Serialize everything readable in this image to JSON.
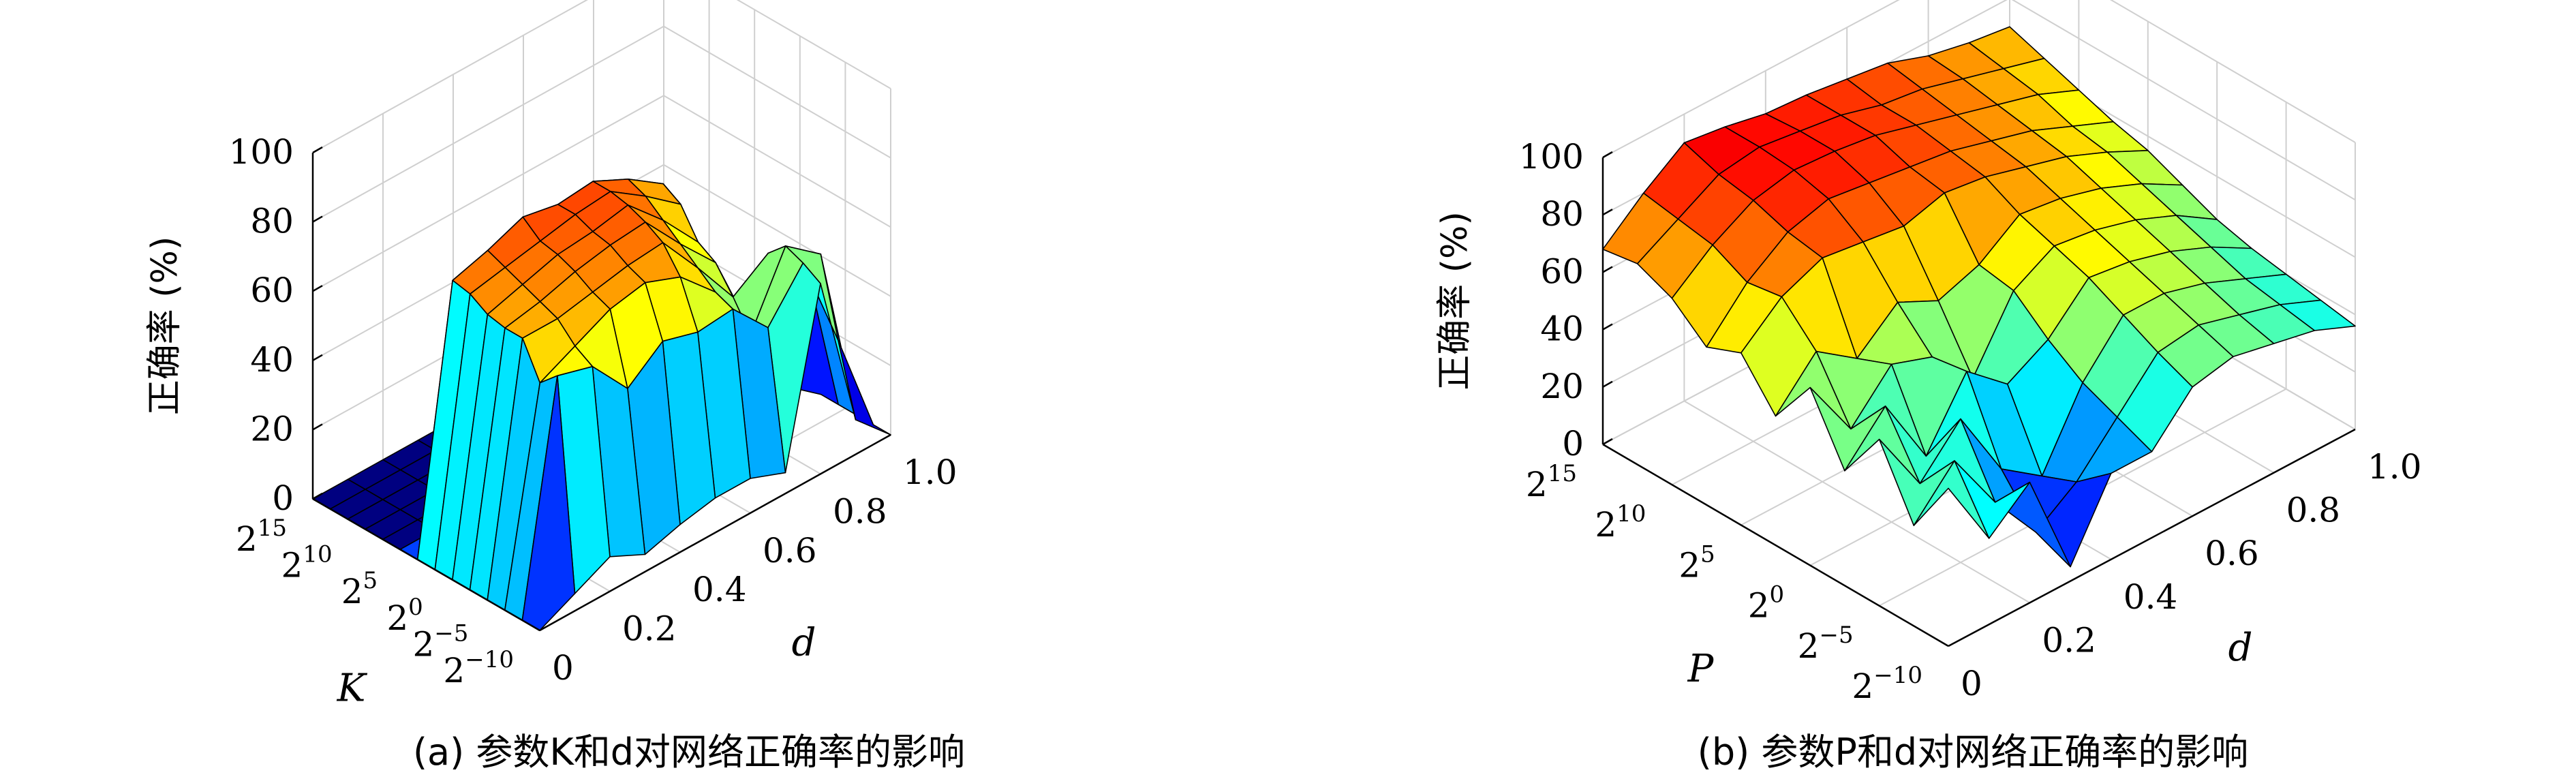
{
  "chart_data": [
    {
      "type": "surface",
      "caption": "(a) 参数K和d对网络正确率的影响",
      "xlabel": "K",
      "ylabel": "d",
      "zlabel": "正确率 (%)",
      "x_ticks": [
        "2^15",
        "2^10",
        "2^5",
        "2^0",
        "2^-5",
        "2^-10"
      ],
      "y_ticks": [
        "0",
        "0.2",
        "0.4",
        "0.6",
        "0.8",
        "1.0"
      ],
      "z_ticks": [
        "0",
        "20",
        "40",
        "60",
        "80",
        "100"
      ],
      "zlim": [
        0,
        100
      ],
      "ylim": [
        0,
        1
      ],
      "x_exponents": [
        15,
        10,
        5,
        0,
        -5,
        -10
      ],
      "d_values": [
        0,
        0.1,
        0.2,
        0.3,
        0.4,
        0.5,
        0.6,
        0.7,
        0.8,
        0.9,
        1.0
      ],
      "z": [
        [
          0,
          0,
          0,
          0,
          0,
          0,
          0,
          0,
          0,
          0,
          0
        ],
        [
          0,
          0,
          0,
          0,
          0,
          0,
          0,
          0,
          0,
          0,
          0
        ],
        [
          0,
          0,
          0,
          0,
          0,
          0,
          0,
          0,
          0,
          0,
          0
        ],
        [
          0,
          0,
          0,
          0,
          0,
          0,
          0,
          0,
          0,
          0,
          0
        ],
        [
          0,
          0,
          0,
          0,
          0,
          0,
          0,
          0,
          0,
          0,
          0
        ],
        [
          0,
          0,
          0,
          0,
          0,
          0,
          0,
          0,
          0,
          0,
          0
        ],
        [
          0,
          75,
          78,
          82,
          80,
          81,
          76,
          69,
          45,
          2,
          0
        ],
        [
          0,
          74,
          76,
          78,
          80,
          81,
          74,
          66,
          32,
          0,
          0
        ],
        [
          0,
          71,
          74,
          77,
          78,
          80,
          70,
          58,
          5,
          0,
          0
        ],
        [
          0,
          70,
          72,
          75,
          77,
          78,
          66,
          55,
          30,
          8,
          0
        ],
        [
          0,
          70,
          70,
          72,
          74,
          75,
          62,
          48,
          55,
          50,
          0
        ],
        [
          0,
          60,
          65,
          70,
          72,
          68,
          58,
          40,
          60,
          52,
          0
        ],
        [
          0,
          65,
          62,
          50,
          58,
          55,
          56,
          45,
          58,
          30,
          0
        ],
        [
          0,
          5,
          10,
          5,
          8,
          10,
          10,
          6,
          55,
          10,
          0
        ]
      ]
    },
    {
      "type": "surface",
      "caption": "(b) 参数P和d对网络正确率的影响",
      "xlabel": "P",
      "ylabel": "d",
      "zlabel": "正确率 (%)",
      "x_ticks": [
        "2^15",
        "2^10",
        "2^5",
        "2^0",
        "2^-5",
        "2^-10"
      ],
      "y_ticks": [
        "0",
        "0.2",
        "0.4",
        "0.6",
        "0.8",
        "1.0"
      ],
      "z_ticks": [
        "0",
        "20",
        "40",
        "60",
        "80",
        "100"
      ],
      "zlim": [
        0,
        100
      ],
      "ylim": [
        0,
        1
      ],
      "x_exponents": [
        15,
        10,
        5,
        0,
        -5,
        -10
      ],
      "d_values": [
        0,
        0.1,
        0.2,
        0.3,
        0.4,
        0.5,
        0.6,
        0.7,
        0.8,
        0.9,
        1.0
      ],
      "z": [
        [
          68,
          80,
          90,
          88,
          85,
          84,
          82,
          80,
          75,
          72,
          70
        ],
        [
          70,
          78,
          86,
          88,
          86,
          84,
          80,
          78,
          74,
          70,
          66
        ],
        [
          65,
          76,
          84,
          87,
          86,
          84,
          80,
          76,
          72,
          68,
          62
        ],
        [
          55,
          70,
          80,
          84,
          82,
          80,
          78,
          74,
          70,
          64,
          58
        ],
        [
          60,
          72,
          78,
          76,
          74,
          78,
          76,
          72,
          68,
          62,
          55
        ],
        [
          45,
          60,
          50,
          62,
          55,
          60,
          70,
          68,
          64,
          58,
          50
        ],
        [
          62,
          40,
          55,
          50,
          35,
          58,
          66,
          64,
          60,
          54,
          45
        ],
        [
          40,
          55,
          30,
          52,
          40,
          48,
          62,
          60,
          56,
          50,
          42
        ],
        [
          58,
          35,
          50,
          25,
          15,
          40,
          56,
          56,
          52,
          46,
          40
        ],
        [
          35,
          50,
          28,
          10,
          20,
          35,
          50,
          52,
          48,
          44,
          38
        ],
        [
          55,
          30,
          42,
          5,
          30,
          30,
          45,
          48,
          45,
          42,
          36
        ]
      ]
    }
  ]
}
